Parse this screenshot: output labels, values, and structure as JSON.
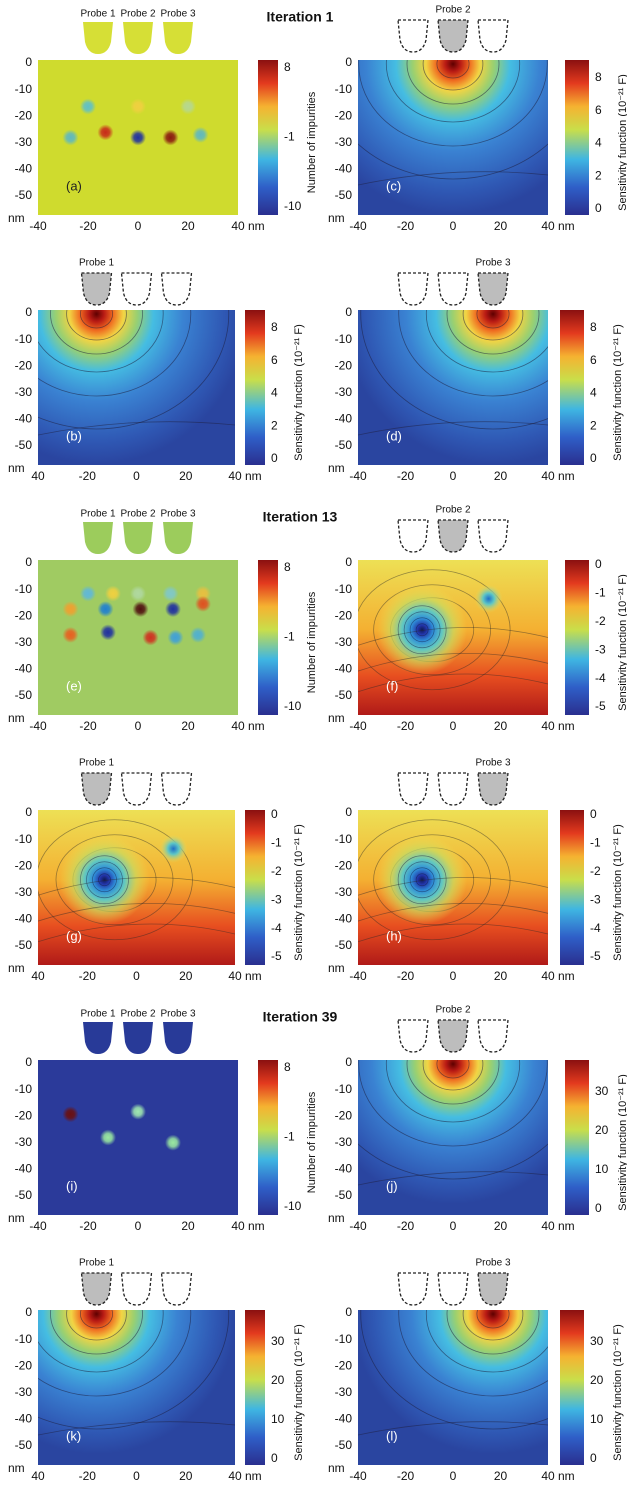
{
  "figure": {
    "groups": [
      {
        "title": "Iteration 1",
        "panels": [
          {
            "label": "(a)",
            "probe_labels": [
              "Probe 1",
              "Probe 2",
              "Probe 3"
            ],
            "y_ticks": [
              "0",
              "-10",
              "-20",
              "-30",
              "-40",
              "-50"
            ],
            "y_unit": "nm",
            "x_ticks": [
              "-40",
              "-20",
              "0",
              "20",
              "40"
            ],
            "x_unit": "nm",
            "colorbar_ticks": [
              "8",
              "-1",
              "-10"
            ],
            "colorbar_label": "Number of impurities"
          },
          {
            "label": "(c)",
            "probe_labels": [
              "Probe 2"
            ],
            "y_ticks": [
              "0",
              "-10",
              "-20",
              "-30",
              "-40",
              "-50"
            ],
            "y_unit": "nm",
            "x_ticks": [
              "-40",
              "-20",
              "0",
              "20",
              "40"
            ],
            "x_unit": "nm",
            "colorbar_ticks": [
              "8",
              "6",
              "4",
              "2",
              "0"
            ],
            "colorbar_label": "Sensitivity function (10⁻²¹ F)"
          },
          {
            "label": "(b)",
            "probe_labels": [
              "Probe 1"
            ],
            "y_ticks": [
              "0",
              "-10",
              "-20",
              "-30",
              "-40",
              "-50"
            ],
            "y_unit": "nm",
            "x_ticks": [
              "40",
              "-20",
              "0",
              "20",
              "40"
            ],
            "x_unit": "nm",
            "colorbar_ticks": [
              "8",
              "6",
              "4",
              "2",
              "0"
            ],
            "colorbar_label": "Sensitivity function (10⁻²¹ F)"
          },
          {
            "label": "(d)",
            "probe_labels": [
              "Probe 3"
            ],
            "y_ticks": [
              "0",
              "-10",
              "-20",
              "-30",
              "-40",
              "-50"
            ],
            "y_unit": "nm",
            "x_ticks": [
              "-40",
              "-20",
              "0",
              "20",
              "40"
            ],
            "x_unit": "nm",
            "colorbar_ticks": [
              "8",
              "6",
              "4",
              "2",
              "0"
            ],
            "colorbar_label": "Sensitivity function (10⁻²¹ F)"
          }
        ]
      },
      {
        "title": "Iteration 13",
        "panels": [
          {
            "label": "(e)",
            "probe_labels": [
              "Probe 1",
              "Probe 2",
              "Probe 3"
            ],
            "y_ticks": [
              "0",
              "-10",
              "-20",
              "-30",
              "-40",
              "-50"
            ],
            "y_unit": "nm",
            "x_ticks": [
              "-40",
              "-20",
              "0",
              "20",
              "40"
            ],
            "x_unit": "nm",
            "colorbar_ticks": [
              "8",
              "-1",
              "-10"
            ],
            "colorbar_label": "Number of impurities"
          },
          {
            "label": "(f)",
            "probe_labels": [
              "Probe 2"
            ],
            "y_ticks": [
              "0",
              "-10",
              "-20",
              "-30",
              "-40",
              "-50"
            ],
            "y_unit": "nm",
            "x_ticks": [
              "-40",
              "-20",
              "0",
              "20",
              "40"
            ],
            "x_unit": "nm",
            "colorbar_ticks": [
              "0",
              "-1",
              "-2",
              "-3",
              "-4",
              "-5"
            ],
            "colorbar_label": "Sensitivity function (10⁻²¹ F)"
          },
          {
            "label": "(g)",
            "probe_labels": [
              "Probe 1"
            ],
            "y_ticks": [
              "0",
              "-10",
              "-20",
              "-30",
              "-40",
              "-50"
            ],
            "y_unit": "nm",
            "x_ticks": [
              "40",
              "-20",
              "0",
              "20",
              "40"
            ],
            "x_unit": "nm",
            "colorbar_ticks": [
              "0",
              "-1",
              "-2",
              "-3",
              "-4",
              "-5"
            ],
            "colorbar_label": "Sensitivity function (10⁻²¹ F)"
          },
          {
            "label": "(h)",
            "probe_labels": [
              "Probe 3"
            ],
            "y_ticks": [
              "0",
              "-10",
              "-20",
              "-30",
              "-40",
              "-50"
            ],
            "y_unit": "nm",
            "x_ticks": [
              "-40",
              "-20",
              "0",
              "20",
              "40"
            ],
            "x_unit": "nm",
            "colorbar_ticks": [
              "0",
              "-1",
              "-2",
              "-3",
              "-4",
              "-5"
            ],
            "colorbar_label": "Sensitivity function (10⁻²¹ F)"
          }
        ]
      },
      {
        "title": "Iteration 39",
        "panels": [
          {
            "label": "(i)",
            "probe_labels": [
              "Probe 1",
              "Probe 2",
              "Probe 3"
            ],
            "y_ticks": [
              "0",
              "-10",
              "-20",
              "-30",
              "-40",
              "-50"
            ],
            "y_unit": "nm",
            "x_ticks": [
              "-40",
              "-20",
              "0",
              "20",
              "40"
            ],
            "x_unit": "nm",
            "colorbar_ticks": [
              "8",
              "-1",
              "-10"
            ],
            "colorbar_label": "Number of impurities"
          },
          {
            "label": "(j)",
            "probe_labels": [
              "Probe 2"
            ],
            "y_ticks": [
              "0",
              "-10",
              "-20",
              "-30",
              "-40",
              "-50"
            ],
            "y_unit": "nm",
            "x_ticks": [
              "-40",
              "-20",
              "0",
              "20",
              "40"
            ],
            "x_unit": "nm",
            "colorbar_ticks": [
              "30",
              "20",
              "10",
              "0"
            ],
            "colorbar_label": "Sensitivity function (10⁻²¹ F)"
          },
          {
            "label": "(k)",
            "probe_labels": [
              "Probe 1"
            ],
            "y_ticks": [
              "0",
              "-10",
              "-20",
              "-30",
              "-40",
              "-50"
            ],
            "y_unit": "nm",
            "x_ticks": [
              "40",
              "-20",
              "0",
              "20",
              "40"
            ],
            "x_unit": "nm",
            "colorbar_ticks": [
              "30",
              "20",
              "10",
              "0"
            ],
            "colorbar_label": "Sensitivity function (10⁻²¹ F)"
          },
          {
            "label": "(l)",
            "probe_labels": [
              "Probe 3"
            ],
            "y_ticks": [
              "0",
              "-10",
              "-20",
              "-30",
              "-40",
              "-50"
            ],
            "y_unit": "nm",
            "x_ticks": [
              "-40",
              "-20",
              "0",
              "20",
              "40"
            ],
            "x_unit": "nm",
            "colorbar_ticks": [
              "30",
              "20",
              "10",
              "0"
            ],
            "colorbar_label": "Sensitivity function (10⁻²¹ F)"
          }
        ]
      }
    ]
  }
}
